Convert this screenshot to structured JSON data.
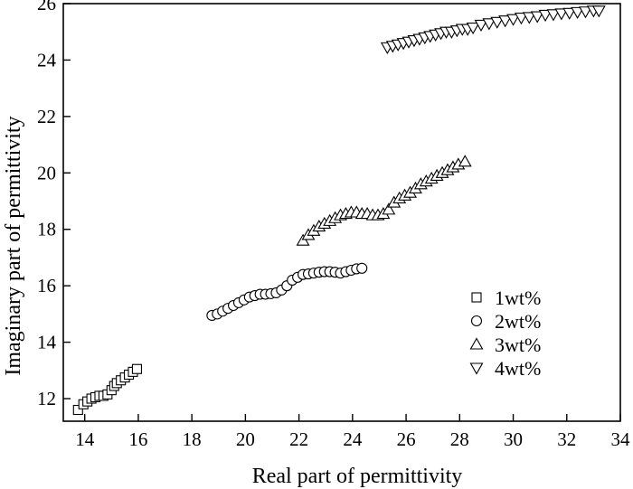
{
  "chart_data": {
    "type": "scatter",
    "xlabel": "Real part of permittivity",
    "ylabel": "Imaginary part of permittivity",
    "xlim": [
      13.2,
      34
    ],
    "ylim": [
      11.2,
      26
    ],
    "x_ticks": [
      14,
      16,
      18,
      20,
      22,
      24,
      26,
      28,
      30,
      32,
      34
    ],
    "y_ticks": [
      12,
      14,
      16,
      18,
      20,
      22,
      24,
      26
    ],
    "grid": false,
    "legend_position": "right",
    "series": [
      {
        "name": "1wt%",
        "marker": "square",
        "points": [
          [
            13.75,
            11.6
          ],
          [
            13.95,
            11.8
          ],
          [
            14.1,
            11.9
          ],
          [
            14.25,
            12.0
          ],
          [
            14.4,
            12.05
          ],
          [
            14.55,
            12.1
          ],
          [
            14.7,
            12.1
          ],
          [
            14.85,
            12.15
          ],
          [
            15.0,
            12.3
          ],
          [
            15.1,
            12.45
          ],
          [
            15.2,
            12.55
          ],
          [
            15.35,
            12.65
          ],
          [
            15.5,
            12.75
          ],
          [
            15.65,
            12.85
          ],
          [
            15.8,
            12.95
          ],
          [
            15.95,
            13.05
          ]
        ]
      },
      {
        "name": "2wt%",
        "marker": "circle",
        "points": [
          [
            18.75,
            14.95
          ],
          [
            18.95,
            15.0
          ],
          [
            19.15,
            15.1
          ],
          [
            19.35,
            15.2
          ],
          [
            19.55,
            15.3
          ],
          [
            19.75,
            15.4
          ],
          [
            19.95,
            15.5
          ],
          [
            20.15,
            15.6
          ],
          [
            20.35,
            15.65
          ],
          [
            20.55,
            15.7
          ],
          [
            20.75,
            15.7
          ],
          [
            20.95,
            15.72
          ],
          [
            21.15,
            15.75
          ],
          [
            21.35,
            15.85
          ],
          [
            21.55,
            16.0
          ],
          [
            21.75,
            16.2
          ],
          [
            21.95,
            16.3
          ],
          [
            22.15,
            16.4
          ],
          [
            22.35,
            16.42
          ],
          [
            22.55,
            16.45
          ],
          [
            22.75,
            16.48
          ],
          [
            22.95,
            16.5
          ],
          [
            23.15,
            16.5
          ],
          [
            23.35,
            16.48
          ],
          [
            23.55,
            16.45
          ],
          [
            23.75,
            16.5
          ],
          [
            23.95,
            16.55
          ],
          [
            24.15,
            16.6
          ],
          [
            24.35,
            16.62
          ]
        ]
      },
      {
        "name": "3wt%",
        "marker": "triangle-up",
        "points": [
          [
            22.15,
            17.6
          ],
          [
            22.35,
            17.8
          ],
          [
            22.55,
            17.95
          ],
          [
            22.75,
            18.1
          ],
          [
            22.95,
            18.2
          ],
          [
            23.15,
            18.3
          ],
          [
            23.35,
            18.4
          ],
          [
            23.55,
            18.5
          ],
          [
            23.75,
            18.55
          ],
          [
            23.95,
            18.6
          ],
          [
            24.15,
            18.6
          ],
          [
            24.35,
            18.55
          ],
          [
            24.55,
            18.55
          ],
          [
            24.75,
            18.5
          ],
          [
            24.95,
            18.5
          ],
          [
            25.15,
            18.55
          ],
          [
            25.35,
            18.7
          ],
          [
            25.55,
            18.95
          ],
          [
            25.75,
            19.1
          ],
          [
            25.95,
            19.2
          ],
          [
            26.15,
            19.3
          ],
          [
            26.35,
            19.45
          ],
          [
            26.55,
            19.6
          ],
          [
            26.75,
            19.7
          ],
          [
            26.95,
            19.8
          ],
          [
            27.15,
            19.9
          ],
          [
            27.35,
            20.0
          ],
          [
            27.55,
            20.1
          ],
          [
            27.75,
            20.2
          ],
          [
            27.95,
            20.3
          ],
          [
            28.2,
            20.4
          ]
        ]
      },
      {
        "name": "4wt%",
        "marker": "triangle-down",
        "points": [
          [
            25.3,
            24.45
          ],
          [
            25.5,
            24.5
          ],
          [
            25.7,
            24.55
          ],
          [
            25.9,
            24.6
          ],
          [
            26.1,
            24.65
          ],
          [
            26.3,
            24.7
          ],
          [
            26.5,
            24.75
          ],
          [
            26.7,
            24.8
          ],
          [
            26.9,
            24.85
          ],
          [
            27.1,
            24.9
          ],
          [
            27.3,
            24.95
          ],
          [
            27.5,
            25.0
          ],
          [
            27.7,
            25.0
          ],
          [
            27.9,
            25.05
          ],
          [
            28.1,
            25.1
          ],
          [
            28.3,
            25.1
          ],
          [
            28.5,
            25.15
          ],
          [
            28.8,
            25.25
          ],
          [
            29.1,
            25.3
          ],
          [
            29.4,
            25.35
          ],
          [
            29.7,
            25.4
          ],
          [
            30.0,
            25.45
          ],
          [
            30.3,
            25.5
          ],
          [
            30.6,
            25.52
          ],
          [
            30.9,
            25.55
          ],
          [
            31.2,
            25.6
          ],
          [
            31.5,
            25.62
          ],
          [
            31.8,
            25.65
          ],
          [
            32.1,
            25.67
          ],
          [
            32.4,
            25.7
          ],
          [
            32.7,
            25.72
          ],
          [
            33.0,
            25.75
          ],
          [
            33.2,
            25.75
          ]
        ]
      }
    ]
  }
}
